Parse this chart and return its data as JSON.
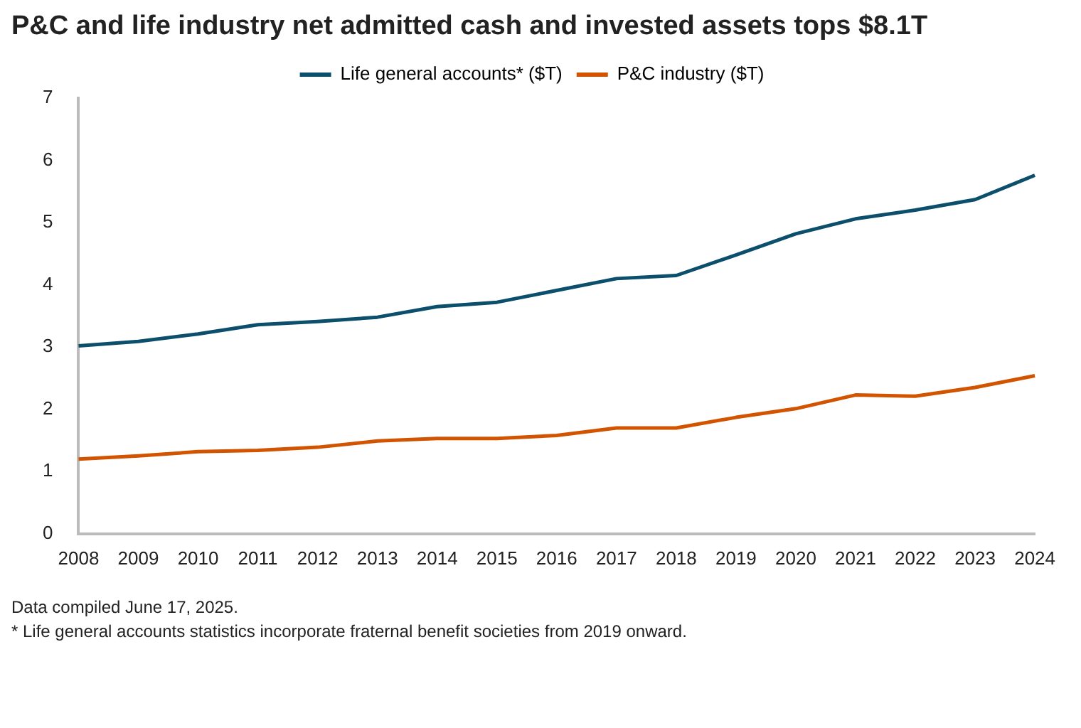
{
  "chart_data": {
    "type": "line",
    "title": "P&C and life industry net admitted cash and invested assets tops $8.1T",
    "categories": [
      "2008",
      "2009",
      "2010",
      "2011",
      "2012",
      "2013",
      "2014",
      "2015",
      "2016",
      "2017",
      "2018",
      "2019",
      "2020",
      "2021",
      "2022",
      "2023",
      "2024"
    ],
    "series": [
      {
        "name": "Life general accounts* ($T)",
        "color": "#0b4f6c",
        "values": [
          3.02,
          3.09,
          3.21,
          3.36,
          3.41,
          3.48,
          3.65,
          3.72,
          3.91,
          4.1,
          4.15,
          4.48,
          4.82,
          5.06,
          5.2,
          5.37,
          5.76
        ]
      },
      {
        "name": "P&C industry ($T)",
        "color": "#d35400",
        "values": [
          1.2,
          1.25,
          1.32,
          1.34,
          1.39,
          1.49,
          1.53,
          1.53,
          1.58,
          1.7,
          1.7,
          1.87,
          2.01,
          2.23,
          2.21,
          2.35,
          2.54
        ]
      }
    ],
    "ylim": [
      0,
      7
    ],
    "yticks": [
      0,
      1,
      2,
      3,
      4,
      5,
      6,
      7
    ],
    "grid": false,
    "legend": "top",
    "marker": "none",
    "line_style": "solid",
    "annotations": [
      "Data compiled June 17, 2025.",
      "* Life general accounts statistics incorporate fraternal benefit societies from 2019 onward."
    ]
  }
}
